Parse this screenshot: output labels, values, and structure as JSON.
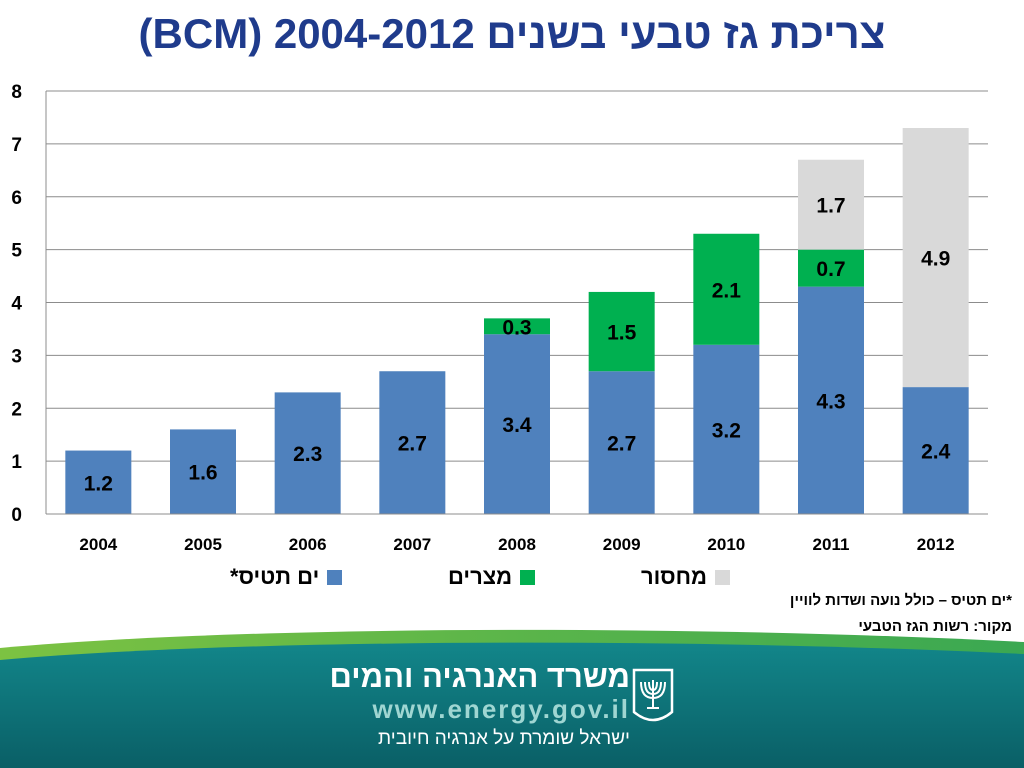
{
  "title": "צריכת גז טבעי בשנים 2004-2012 (BCM)",
  "chart_data": {
    "type": "bar",
    "stacked": true,
    "categories": [
      "2004",
      "2005",
      "2006",
      "2007",
      "2008",
      "2009",
      "2010",
      "2011",
      "2012"
    ],
    "series": [
      {
        "name": "ים תטיס*",
        "color": "#4f81bd",
        "values": [
          1.2,
          1.6,
          2.3,
          2.7,
          3.4,
          2.7,
          3.2,
          4.3,
          2.4
        ],
        "labels": [
          "1.2",
          "1.6",
          "2.3",
          "2.7",
          "3.4",
          "2.7",
          "3.2",
          "4.3",
          "2.4"
        ]
      },
      {
        "name": "מצרים",
        "color": "#00b050",
        "values": [
          0,
          0,
          0,
          0,
          0.3,
          1.5,
          2.1,
          0.7,
          0
        ],
        "labels": [
          "",
          "",
          "",
          "",
          "0.3",
          "1.5",
          "2.1",
          "0.7",
          ""
        ]
      },
      {
        "name": "מחסור",
        "color": "#d9d9d9",
        "values": [
          0,
          0,
          0,
          0,
          0,
          0,
          0,
          1.7,
          4.9
        ],
        "labels": [
          "",
          "",
          "",
          "",
          "",
          "",
          "",
          "1.7",
          "4.9"
        ]
      }
    ],
    "ylim": [
      0,
      8
    ],
    "yticks": [
      0,
      1,
      2,
      3,
      4,
      5,
      6,
      7,
      8
    ],
    "grid": true,
    "legend": "bottom"
  },
  "notes": {
    "footnote": "*ים תטיס – כולל נועה ושדות לוויין",
    "source": "מקור: רשות הגז הטבעי"
  },
  "footer": {
    "ministry_name": "משרד האנרגיה והמים",
    "url": "www.energy.gov.il",
    "slogan": "ישראל שומרת על אנרגיה חיובית",
    "emblem_icon": "menorah-emblem-icon"
  }
}
